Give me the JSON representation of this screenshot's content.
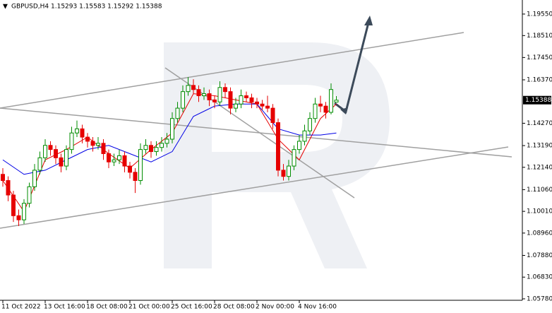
{
  "chart_data": {
    "type": "candlestick",
    "title": "GBPUSD,H4  1.15293 1.15583 1.15292 1.15388",
    "up_color": "#008c00",
    "down_color": "#e60000",
    "ylim": [
      1.0571,
      1.2023
    ],
    "yticks": [
      {
        "value": 1.1955,
        "label": "1.19550"
      },
      {
        "value": 1.1851,
        "label": "1.18510"
      },
      {
        "value": 1.1745,
        "label": "1.17450"
      },
      {
        "value": 1.1637,
        "label": "1.16370"
      },
      {
        "value": 1.1427,
        "label": "1.14270"
      },
      {
        "value": 1.1319,
        "label": "1.13190"
      },
      {
        "value": 1.1214,
        "label": "1.12140"
      },
      {
        "value": 1.1106,
        "label": "1.11060"
      },
      {
        "value": 1.1001,
        "label": "1.10010"
      },
      {
        "value": 1.0896,
        "label": "1.08960"
      },
      {
        "value": 1.0788,
        "label": "1.07880"
      },
      {
        "value": 1.0683,
        "label": "1.06830"
      },
      {
        "value": 1.0578,
        "label": "1.05780"
      }
    ],
    "current_price": {
      "value": 1.15388,
      "label": "1.15388"
    },
    "categories": [
      "11 Oct 2022",
      "13 Oct 16:00",
      "18 Oct 08:00",
      "21 Oct 00:00",
      "25 Oct 16:00",
      "28 Oct 08:00",
      "2 Nov 00:00",
      "4 Nov 16:00"
    ],
    "candles": [
      [
        1.118,
        1.121,
        1.112,
        1.115
      ],
      [
        1.115,
        1.117,
        1.105,
        1.108
      ],
      [
        1.108,
        1.11,
        1.095,
        1.098
      ],
      [
        1.098,
        1.101,
        1.093,
        1.096
      ],
      [
        1.096,
        1.106,
        1.094,
        1.104
      ],
      [
        1.104,
        1.114,
        1.102,
        1.112
      ],
      [
        1.112,
        1.123,
        1.11,
        1.12
      ],
      [
        1.12,
        1.129,
        1.118,
        1.126
      ],
      [
        1.126,
        1.135,
        1.124,
        1.132
      ],
      [
        1.132,
        1.134,
        1.127,
        1.13
      ],
      [
        1.13,
        1.132,
        1.123,
        1.126
      ],
      [
        1.126,
        1.128,
        1.119,
        1.122
      ],
      [
        1.122,
        1.132,
        1.12,
        1.13
      ],
      [
        1.13,
        1.141,
        1.128,
        1.138
      ],
      [
        1.138,
        1.144,
        1.136,
        1.14
      ],
      [
        1.14,
        1.142,
        1.133,
        1.136
      ],
      [
        1.136,
        1.138,
        1.131,
        1.134
      ],
      [
        1.134,
        1.136,
        1.129,
        1.132
      ],
      [
        1.132,
        1.136,
        1.13,
        1.133
      ],
      [
        1.133,
        1.135,
        1.125,
        1.128
      ],
      [
        1.128,
        1.13,
        1.121,
        1.124
      ],
      [
        1.124,
        1.128,
        1.122,
        1.125
      ],
      [
        1.125,
        1.13,
        1.123,
        1.127
      ],
      [
        1.127,
        1.129,
        1.119,
        1.122
      ],
      [
        1.122,
        1.124,
        1.116,
        1.119
      ],
      [
        1.119,
        1.121,
        1.109,
        1.115
      ],
      [
        1.115,
        1.133,
        1.113,
        1.13
      ],
      [
        1.13,
        1.135,
        1.128,
        1.132
      ],
      [
        1.132,
        1.134,
        1.126,
        1.129
      ],
      [
        1.129,
        1.134,
        1.127,
        1.131
      ],
      [
        1.131,
        1.136,
        1.129,
        1.133
      ],
      [
        1.133,
        1.138,
        1.131,
        1.135
      ],
      [
        1.135,
        1.148,
        1.133,
        1.145
      ],
      [
        1.145,
        1.153,
        1.143,
        1.15
      ],
      [
        1.15,
        1.161,
        1.148,
        1.158
      ],
      [
        1.158,
        1.165,
        1.156,
        1.161
      ],
      [
        1.161,
        1.164,
        1.157,
        1.159
      ],
      [
        1.159,
        1.161,
        1.153,
        1.156
      ],
      [
        1.156,
        1.16,
        1.154,
        1.157
      ],
      [
        1.157,
        1.159,
        1.151,
        1.154
      ],
      [
        1.154,
        1.156,
        1.15,
        1.153
      ],
      [
        1.153,
        1.163,
        1.151,
        1.16
      ],
      [
        1.16,
        1.162,
        1.155,
        1.158
      ],
      [
        1.158,
        1.16,
        1.147,
        1.15
      ],
      [
        1.15,
        1.155,
        1.148,
        1.152
      ],
      [
        1.152,
        1.159,
        1.15,
        1.156
      ],
      [
        1.156,
        1.158,
        1.153,
        1.155
      ],
      [
        1.155,
        1.157,
        1.15,
        1.153
      ],
      [
        1.153,
        1.155,
        1.15,
        1.152
      ],
      [
        1.152,
        1.154,
        1.149,
        1.151
      ],
      [
        1.151,
        1.156,
        1.148,
        1.15
      ],
      [
        1.15,
        1.152,
        1.14,
        1.143
      ],
      [
        1.143,
        1.145,
        1.117,
        1.12
      ],
      [
        1.12,
        1.123,
        1.115,
        1.117
      ],
      [
        1.117,
        1.125,
        1.115,
        1.122
      ],
      [
        1.122,
        1.132,
        1.12,
        1.13
      ],
      [
        1.13,
        1.137,
        1.128,
        1.134
      ],
      [
        1.134,
        1.142,
        1.132,
        1.139
      ],
      [
        1.139,
        1.148,
        1.137,
        1.145
      ],
      [
        1.145,
        1.155,
        1.143,
        1.152
      ],
      [
        1.152,
        1.156,
        1.148,
        1.151
      ],
      [
        1.151,
        1.153,
        1.145,
        1.148
      ],
      [
        1.148,
        1.162,
        1.147,
        1.159
      ],
      [
        1.15293,
        1.15583,
        1.15292,
        1.15388
      ]
    ],
    "lines": [
      {
        "color": "#e60000",
        "x": [
          0,
          4,
          8,
          12,
          16,
          20,
          24,
          28,
          32,
          36,
          40,
          44,
          48,
          52,
          56,
          60,
          63
        ],
        "values": [
          1.115,
          1.1,
          1.125,
          1.13,
          1.136,
          1.128,
          1.121,
          1.13,
          1.138,
          1.157,
          1.156,
          1.154,
          1.152,
          1.135,
          1.125,
          1.145,
          1.152
        ]
      },
      {
        "color": "#0000e6",
        "x": [
          0,
          4,
          8,
          12,
          16,
          20,
          24,
          28,
          32,
          36,
          40,
          44,
          48,
          52,
          56,
          60,
          63
        ],
        "values": [
          1.125,
          1.118,
          1.12,
          1.125,
          1.13,
          1.132,
          1.128,
          1.124,
          1.129,
          1.146,
          1.151,
          1.152,
          1.152,
          1.14,
          1.137,
          1.137,
          1.138
        ]
      }
    ]
  }
}
